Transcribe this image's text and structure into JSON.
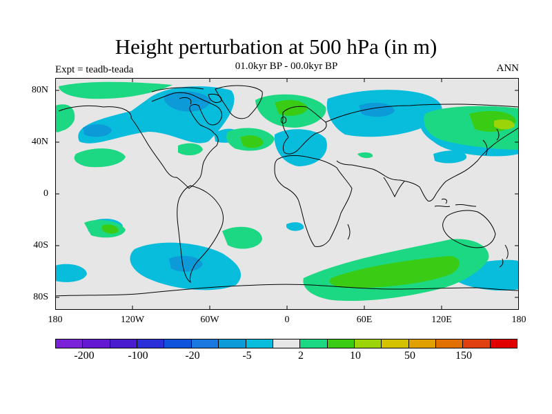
{
  "title": "Height perturbation at 500 hPa (in m)",
  "subtitle": "01.0kyr BP - 00.0kyr BP",
  "left_label": "Expt = teadb-teada",
  "right_label": "ANN",
  "lat_labels": [
    "80N",
    "40N",
    "0",
    "40S",
    "80S"
  ],
  "lon_labels": [
    "180",
    "120W",
    "60W",
    "0",
    "60E",
    "120E",
    "180"
  ],
  "legend": {
    "colors": [
      "#7a22d8",
      "#6418d2",
      "#4a1cd0",
      "#2a2fd8",
      "#0f52dc",
      "#1a78e0",
      "#0d9ad8",
      "#08bcdc",
      "#e6e6e6",
      "#1dd882",
      "#3acc14",
      "#9cd40a",
      "#d4c200",
      "#e0a000",
      "#e27000",
      "#e04010",
      "#e00000"
    ],
    "labels": [
      "-200",
      "-100",
      "-20",
      "-5",
      "2",
      "10",
      "50",
      "150"
    ]
  },
  "colors": {
    "background": "#e6e6e6",
    "neg_light": "#08bcdc",
    "neg_mid": "#0d9ad8",
    "pos_light": "#1dd882",
    "pos_mid": "#3acc14",
    "pos_strong": "#9cd40a"
  }
}
